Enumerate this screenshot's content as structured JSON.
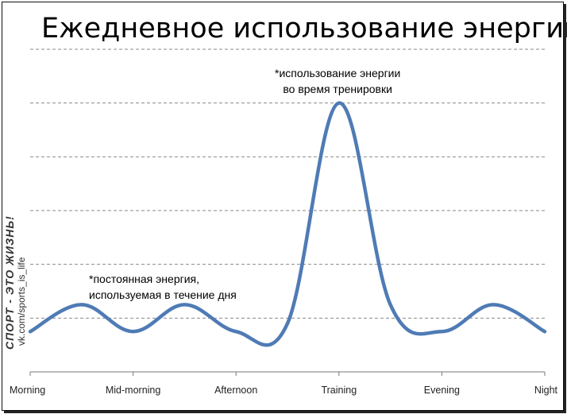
{
  "chart_data": {
    "type": "line",
    "title": "Ежедневное использование энергии",
    "categories": [
      "Morning",
      "Mid-morning",
      "Afternoon",
      "Training",
      "Evening",
      "Night"
    ],
    "series": [
      {
        "values": [
          1.5,
          2.5,
          1.5,
          2.5,
          1.5,
          1.8,
          10,
          2.5,
          1.5,
          2.5,
          1.5
        ],
        "x": [
          0,
          0.5,
          1,
          1.5,
          2,
          2.5,
          3,
          3.5,
          4,
          4.5,
          5
        ],
        "color": "#4f7bb5"
      }
    ],
    "ylim": [
      0,
      12
    ],
    "grid": "horizontal dashed",
    "annotations": [
      {
        "line1": "*использование энергии",
        "line2": "во время тренировки"
      },
      {
        "line1": "*постоянная энергия,",
        "line2": "используемая в течение дня"
      }
    ]
  },
  "watermark": {
    "brand": "СПОРТ - ЭТО ЖИЗНЬ!",
    "url": "vk.com/sports_is_life"
  }
}
